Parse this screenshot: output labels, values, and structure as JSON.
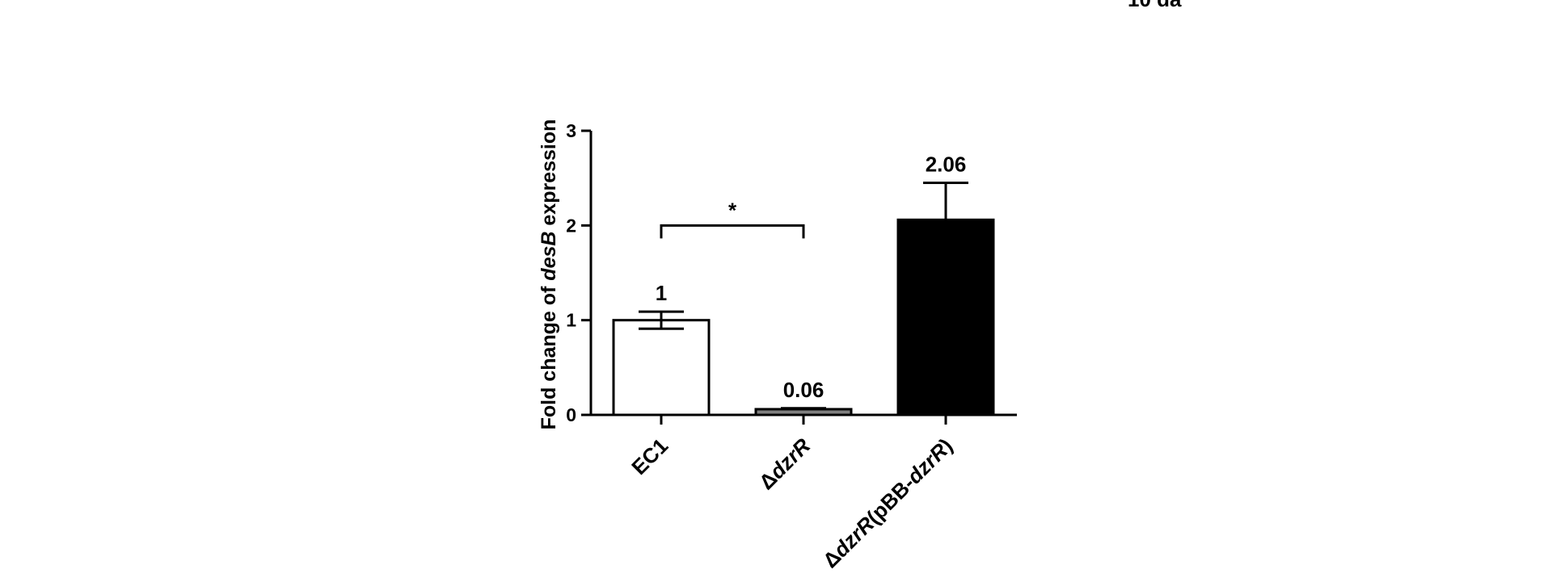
{
  "chart_data": {
    "type": "bar",
    "categories": [
      "EC1",
      "ΔdzrR",
      "ΔdzrR(pBB-dzrR)"
    ],
    "category_parts": [
      [
        {
          "text": "EC1",
          "italic": false
        }
      ],
      [
        {
          "text": "Δ",
          "italic": false
        },
        {
          "text": "dzrR",
          "italic": true
        }
      ],
      [
        {
          "text": "Δ",
          "italic": false
        },
        {
          "text": "dzrR",
          "italic": true
        },
        {
          "text": "(pBB-",
          "italic": false
        },
        {
          "text": "dzrR",
          "italic": true
        },
        {
          "text": ")",
          "italic": false
        }
      ]
    ],
    "values": [
      1,
      0.06,
      2.06
    ],
    "errors": [
      0.09,
      0.01,
      0.39
    ],
    "value_labels": [
      "1",
      "0.06",
      "2.06"
    ],
    "bar_fills": [
      "#ffffff",
      "#7f7f7f",
      "#000000"
    ],
    "ylabel_parts": [
      {
        "text": "Fold change of ",
        "italic": false
      },
      {
        "text": "desB",
        "italic": true
      },
      {
        "text": " expression",
        "italic": false
      }
    ],
    "ylim": [
      0,
      3
    ],
    "yticks": [
      "0",
      "1",
      "2",
      "3"
    ],
    "significance": {
      "from": 0,
      "to": 1,
      "y": 2.0,
      "label": "*"
    },
    "grid": false
  },
  "top_fragment": "10 da"
}
